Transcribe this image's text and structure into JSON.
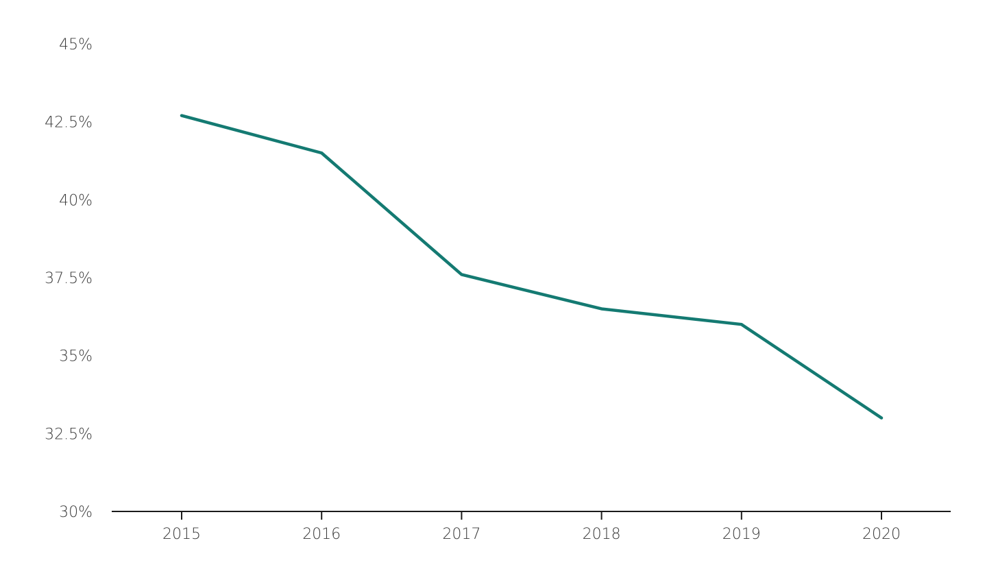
{
  "chart_data": {
    "type": "line",
    "title": "",
    "xlabel": "",
    "ylabel": "",
    "x": [
      "2015",
      "2016",
      "2017",
      "2018",
      "2019",
      "2020"
    ],
    "series": [
      {
        "values": [
          42.7,
          41.5,
          37.6,
          36.5,
          36.0,
          33.0
        ]
      }
    ],
    "ylim": [
      30,
      45
    ],
    "yticks": [
      30,
      32.5,
      35,
      37.5,
      40,
      42.5,
      45
    ],
    "ytick_labels": [
      "30%",
      "32.5%",
      "35%",
      "37.5%",
      "40%",
      "42.5%",
      "45%"
    ],
    "grid": false,
    "line_color": "#147a72"
  }
}
